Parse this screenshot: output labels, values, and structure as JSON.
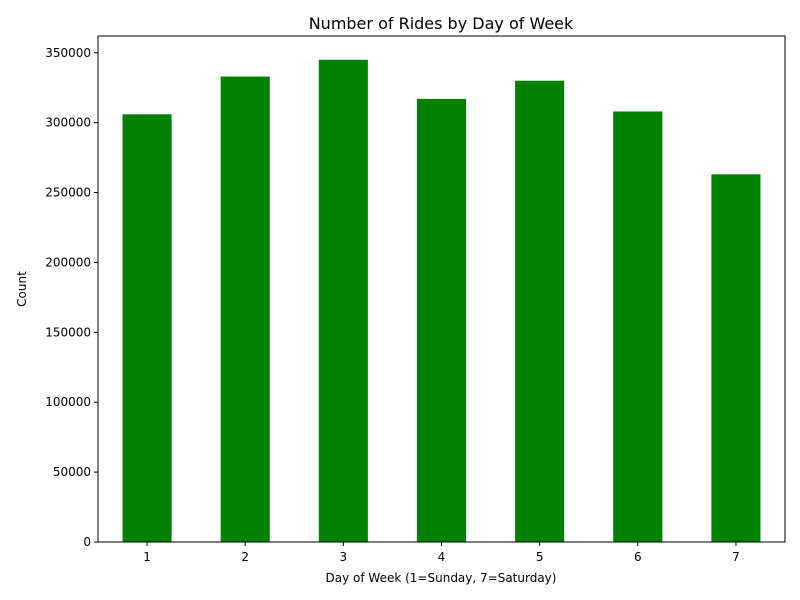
{
  "chart_data": {
    "type": "bar",
    "title": "Number of Rides by Day of Week",
    "xlabel": "Day of Week (1=Sunday, 7=Saturday)",
    "ylabel": "Count",
    "categories": [
      "1",
      "2",
      "3",
      "4",
      "5",
      "6",
      "7"
    ],
    "values": [
      306000,
      333000,
      345000,
      317000,
      330000,
      308000,
      263000
    ],
    "ylim": [
      0,
      362000
    ],
    "yticks": [
      "0",
      "50000",
      "100000",
      "150000",
      "200000",
      "250000",
      "300000",
      "350000"
    ],
    "bar_color": "#008000",
    "grid": false,
    "legend": "none"
  }
}
